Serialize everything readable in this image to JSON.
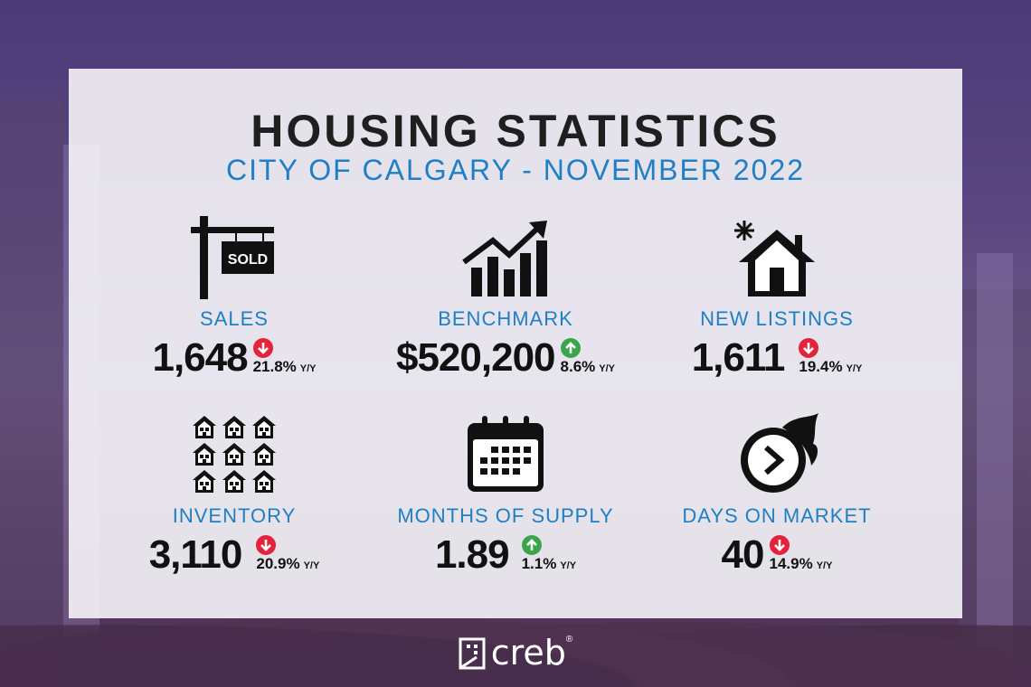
{
  "header": {
    "title": "HOUSING STATISTICS",
    "subtitle": "CITY OF CALGARY - NOVEMBER 2022"
  },
  "stats": [
    {
      "label": "SALES",
      "value": "1,648",
      "change": "21.8%",
      "change_suffix": "Y/Y",
      "direction": "down",
      "icon": "sold-sign-icon"
    },
    {
      "label": "BENCHMARK",
      "value": "$520,200",
      "change": "8.6%",
      "change_suffix": "Y/Y",
      "direction": "up",
      "icon": "bar-chart-trend-icon"
    },
    {
      "label": "NEW LISTINGS",
      "value": "1,611",
      "change": "19.4%",
      "change_suffix": "Y/Y",
      "direction": "down",
      "icon": "new-house-icon"
    },
    {
      "label": "INVENTORY",
      "value": "3,110",
      "change": "20.9%",
      "change_suffix": "Y/Y",
      "direction": "down",
      "icon": "houses-grid-icon"
    },
    {
      "label": "MONTHS OF SUPPLY",
      "value": "1.89",
      "change": "1.1%",
      "change_suffix": "Y/Y",
      "direction": "up",
      "icon": "calendar-icon"
    },
    {
      "label": "DAYS ON MARKET",
      "value": "40",
      "change": "14.9%",
      "change_suffix": "Y/Y",
      "direction": "down",
      "icon": "fast-clock-icon"
    }
  ],
  "sold_sign_text": "SOLD",
  "logo": {
    "text": "creb",
    "registered": "®"
  },
  "colors": {
    "up": "#3aa64a",
    "down": "#e3233a",
    "label": "#1f7fc4",
    "title": "#1f1f1f"
  }
}
